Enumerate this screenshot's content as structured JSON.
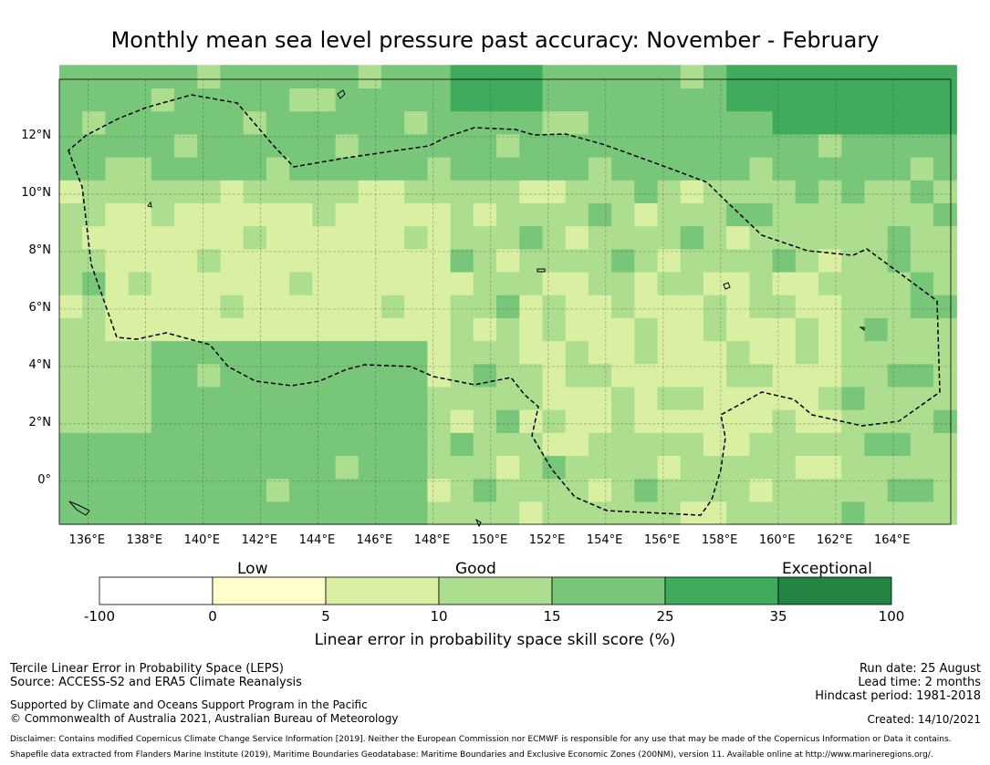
{
  "title": "Monthly mean sea level pressure past accuracy: November - February",
  "map": {
    "lon_range": [
      135,
      166
    ],
    "lat_range": [
      -1.5,
      14
    ],
    "lon_ticks": [
      "136°E",
      "138°E",
      "140°E",
      "142°E",
      "144°E",
      "146°E",
      "148°E",
      "150°E",
      "152°E",
      "154°E",
      "156°E",
      "158°E",
      "160°E",
      "162°E",
      "164°E"
    ],
    "lat_ticks": [
      "12°N",
      "10°N",
      "8°N",
      "6°N",
      "4°N",
      "2°N",
      "0°"
    ],
    "grid": true,
    "boundary_color": "#000000"
  },
  "colorbar": {
    "categories": [
      {
        "label": "Low",
        "position": "left"
      },
      {
        "label": "Good",
        "position": "center"
      },
      {
        "label": "Exceptional",
        "position": "right"
      }
    ],
    "tick_labels": [
      "-100",
      "0",
      "5",
      "10",
      "15",
      "25",
      "35",
      "100"
    ],
    "colors": [
      "#ffffff",
      "#ffffcc",
      "#d9f0a3",
      "#addd8e",
      "#78c679",
      "#41ab5d",
      "#238443"
    ],
    "title": "Linear error in probability space skill score (%)"
  },
  "footer": {
    "left1": "Tercile Linear Error in Probability Space (LEPS)",
    "left2": "Source: ACCESS-S2 and ERA5 Climate Reanalysis",
    "left3": "Supported by Climate and Oceans Support Program in the Pacific",
    "left4": "© Commonwealth of Australia 2021, Australian Bureau of Meteorology",
    "run_date": "Run date: 25 August",
    "lead_time": "Lead time: 2 months",
    "hindcast": "Hindcast period: 1981-2018",
    "created": "Created: 14/10/2021",
    "disclaimer1": "Disclaimer: Contains modified Copernicus Climate Change Service Information [2019]. Neither the European Commission nor ECMWF is responsible for any use that may be made of the Copernicus Information or Data it contains.",
    "disclaimer2": "Shapefile data extracted from Flanders Marine Institute (2019), Maritime Boundaries Geodatabase: Maritime Boundaries and Exclusive Economic Zones (200NM), version 11. Available online at http://www.marineregions.org/."
  }
}
